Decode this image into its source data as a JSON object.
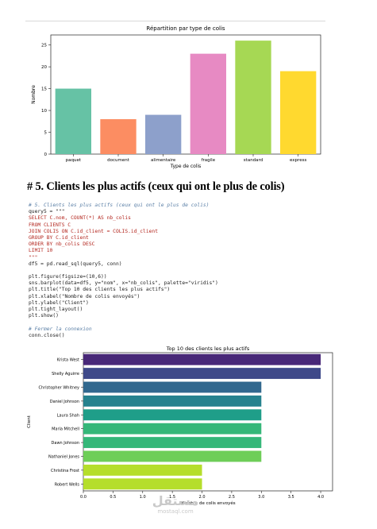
{
  "section": {
    "title": "# 5. Clients les plus actifs (ceux qui ont le plus de colis)"
  },
  "code_lines": [
    {
      "text": "# 5. Clients les plus actifs (ceux qui ont le plus de colis)",
      "style": "comment"
    },
    {
      "text": "query5 = \"\"\"",
      "style": "plain"
    },
    {
      "text": "SELECT C.nom, COUNT(*) AS nb_colis",
      "style": "string"
    },
    {
      "text": "FROM CLIENTS C",
      "style": "string"
    },
    {
      "text": "JOIN COLIS ON C.id_client = COLIS.id_client",
      "style": "string"
    },
    {
      "text": "GROUP BY C.id_client",
      "style": "string"
    },
    {
      "text": "ORDER BY nb_colis DESC",
      "style": "string"
    },
    {
      "text": "LIMIT 10",
      "style": "string"
    },
    {
      "text": "\"\"\"",
      "style": "string"
    },
    {
      "text": "df5 = pd.read_sql(query5, conn)",
      "style": "plain"
    },
    {
      "text": "",
      "style": "plain"
    },
    {
      "text": "plt.figure(figsize=(10,6))",
      "style": "plain"
    },
    {
      "text": "sns.barplot(data=df5, y=\"nom\", x=\"nb_colis\", palette=\"viridis\")",
      "style": "plain"
    },
    {
      "text": "plt.title(\"Top 10 des clients les plus actifs\")",
      "style": "plain"
    },
    {
      "text": "plt.xlabel(\"Nombre de colis envoyés\")",
      "style": "plain"
    },
    {
      "text": "plt.ylabel(\"Client\")",
      "style": "plain"
    },
    {
      "text": "plt.tight_layout()",
      "style": "plain"
    },
    {
      "text": "plt.show()",
      "style": "plain"
    },
    {
      "text": "",
      "style": "plain"
    },
    {
      "text": "# Fermer la connexion",
      "style": "comment"
    },
    {
      "text": "conn.close()",
      "style": "plain"
    }
  ],
  "watermark": {
    "line1": "مستقل",
    "line2": "mostaql.com"
  },
  "chart_data": [
    {
      "type": "bar",
      "orientation": "vertical",
      "title": "Répartition par type de colis",
      "xlabel": "Type de colis",
      "ylabel": "Nombre",
      "categories": [
        "paquet",
        "document",
        "alimentaire",
        "fragile",
        "standard",
        "express"
      ],
      "values": [
        15,
        8,
        9,
        23,
        26,
        19
      ],
      "ylim": [
        0,
        27.3
      ],
      "yticks": [
        0,
        5,
        10,
        15,
        20,
        25
      ],
      "colors": [
        "#66c2a5",
        "#fc8d62",
        "#8da0cb",
        "#e78ac3",
        "#a6d854",
        "#ffd92f"
      ],
      "grid": false
    },
    {
      "type": "bar",
      "orientation": "horizontal",
      "title": "Top 10 des clients les plus actifs",
      "xlabel": "Nombre de colis envoyés",
      "ylabel": "Client",
      "categories": [
        "Krista West",
        "Shelly Aguirre",
        "Christopher Whitney",
        "Daniel Johnson",
        "Laura Shah",
        "Maria Mitchell",
        "Dawn Johnson",
        "Nathaniel Jones",
        "Christina Frost",
        "Robert Wells"
      ],
      "values": [
        4,
        4,
        3,
        3,
        3,
        3,
        3,
        3,
        2,
        2
      ],
      "xlim": [
        0,
        4.2
      ],
      "xticks": [
        0.0,
        0.5,
        1.0,
        1.5,
        2.0,
        2.5,
        3.0,
        3.5,
        4.0
      ],
      "colors": [
        "#482878",
        "#3e4989",
        "#31688e",
        "#26828e",
        "#1f9e89",
        "#35b779",
        "#35b779",
        "#6ece58",
        "#b5de2b",
        "#b5de2b"
      ],
      "grid": false
    }
  ]
}
